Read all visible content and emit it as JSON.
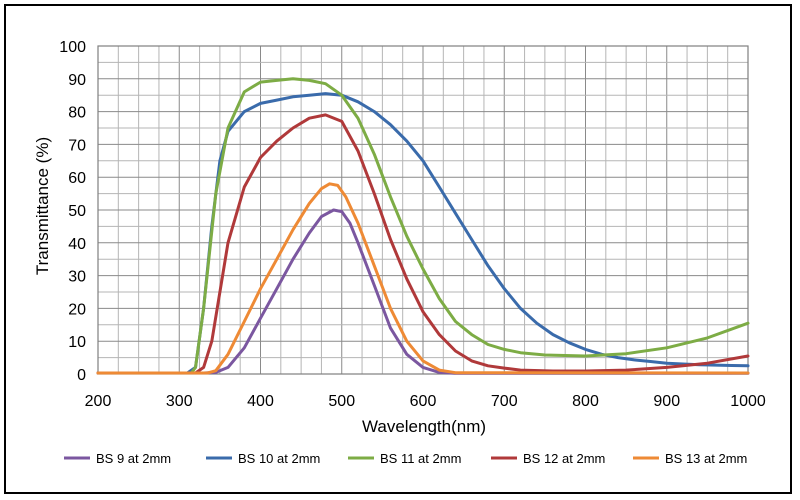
{
  "chart_data": {
    "type": "line",
    "title": "",
    "xlabel": "Wavelength(nm)",
    "ylabel": "Transmittance (%)",
    "xlim": [
      200,
      1000
    ],
    "ylim": [
      0,
      100
    ],
    "x_ticks": [
      200,
      300,
      400,
      500,
      600,
      700,
      800,
      900,
      1000
    ],
    "y_ticks": [
      0,
      10,
      20,
      30,
      40,
      50,
      60,
      70,
      80,
      90,
      100
    ],
    "x_minor_step": 25,
    "y_minor_step": 5,
    "grid": true,
    "legend_position": "bottom",
    "series": [
      {
        "name": "BS 9 at 2mm",
        "color": "#7b57a0",
        "points": [
          [
            200,
            0.3
          ],
          [
            330,
            0.3
          ],
          [
            345,
            0.5
          ],
          [
            360,
            2
          ],
          [
            380,
            8
          ],
          [
            400,
            17
          ],
          [
            420,
            26
          ],
          [
            440,
            35
          ],
          [
            460,
            43
          ],
          [
            475,
            48
          ],
          [
            490,
            50
          ],
          [
            500,
            49.5
          ],
          [
            510,
            46
          ],
          [
            520,
            40
          ],
          [
            540,
            27
          ],
          [
            560,
            14
          ],
          [
            580,
            6
          ],
          [
            600,
            2
          ],
          [
            620,
            0.5
          ],
          [
            640,
            0.2
          ],
          [
            1000,
            0.2
          ]
        ]
      },
      {
        "name": "BS 10 at 2mm",
        "color": "#3a6bab",
        "points": [
          [
            200,
            0.3
          ],
          [
            310,
            0.3
          ],
          [
            320,
            2
          ],
          [
            330,
            20
          ],
          [
            340,
            45
          ],
          [
            350,
            65
          ],
          [
            360,
            74
          ],
          [
            380,
            80
          ],
          [
            400,
            82.5
          ],
          [
            420,
            83.5
          ],
          [
            440,
            84.5
          ],
          [
            460,
            85
          ],
          [
            480,
            85.5
          ],
          [
            500,
            85
          ],
          [
            520,
            83
          ],
          [
            540,
            80
          ],
          [
            560,
            76
          ],
          [
            580,
            71
          ],
          [
            600,
            65
          ],
          [
            620,
            57
          ],
          [
            640,
            49
          ],
          [
            660,
            41
          ],
          [
            680,
            33
          ],
          [
            700,
            26
          ],
          [
            720,
            20
          ],
          [
            740,
            15.5
          ],
          [
            760,
            12
          ],
          [
            780,
            9.5
          ],
          [
            800,
            7.5
          ],
          [
            820,
            6
          ],
          [
            840,
            5
          ],
          [
            860,
            4.3
          ],
          [
            880,
            3.8
          ],
          [
            900,
            3.3
          ],
          [
            940,
            2.8
          ],
          [
            980,
            2.6
          ],
          [
            1000,
            2.5
          ]
        ]
      },
      {
        "name": "BS 11 at 2mm",
        "color": "#7dac45",
        "points": [
          [
            200,
            0.3
          ],
          [
            315,
            0.3
          ],
          [
            320,
            2
          ],
          [
            330,
            20
          ],
          [
            345,
            55
          ],
          [
            360,
            75
          ],
          [
            380,
            86
          ],
          [
            400,
            89
          ],
          [
            420,
            89.5
          ],
          [
            440,
            90
          ],
          [
            460,
            89.5
          ],
          [
            480,
            88.5
          ],
          [
            500,
            85
          ],
          [
            520,
            78
          ],
          [
            540,
            67
          ],
          [
            560,
            54
          ],
          [
            580,
            42
          ],
          [
            600,
            32
          ],
          [
            620,
            23
          ],
          [
            640,
            16
          ],
          [
            660,
            12
          ],
          [
            680,
            9
          ],
          [
            700,
            7.5
          ],
          [
            720,
            6.5
          ],
          [
            750,
            5.8
          ],
          [
            800,
            5.5
          ],
          [
            850,
            6.2
          ],
          [
            900,
            8
          ],
          [
            950,
            11
          ],
          [
            1000,
            15.5
          ]
        ]
      },
      {
        "name": "BS 12 at 2mm",
        "color": "#b0393a",
        "points": [
          [
            200,
            0.3
          ],
          [
            320,
            0.3
          ],
          [
            330,
            2
          ],
          [
            340,
            10
          ],
          [
            350,
            25
          ],
          [
            360,
            40
          ],
          [
            380,
            57
          ],
          [
            400,
            66
          ],
          [
            420,
            71
          ],
          [
            440,
            75
          ],
          [
            460,
            78
          ],
          [
            480,
            79
          ],
          [
            500,
            77
          ],
          [
            520,
            68
          ],
          [
            540,
            55
          ],
          [
            560,
            41
          ],
          [
            580,
            29
          ],
          [
            600,
            19
          ],
          [
            620,
            12
          ],
          [
            640,
            7
          ],
          [
            660,
            4
          ],
          [
            680,
            2.5
          ],
          [
            700,
            1.8
          ],
          [
            720,
            1.2
          ],
          [
            760,
            0.9
          ],
          [
            800,
            0.9
          ],
          [
            850,
            1.2
          ],
          [
            900,
            2
          ],
          [
            950,
            3.3
          ],
          [
            1000,
            5.5
          ]
        ]
      },
      {
        "name": "BS 13 at 2mm",
        "color": "#ee8a35",
        "points": [
          [
            200,
            0.3
          ],
          [
            335,
            0.3
          ],
          [
            345,
            1
          ],
          [
            360,
            6
          ],
          [
            380,
            16
          ],
          [
            400,
            26
          ],
          [
            420,
            35
          ],
          [
            440,
            44
          ],
          [
            460,
            52
          ],
          [
            475,
            56.5
          ],
          [
            485,
            58
          ],
          [
            495,
            57.5
          ],
          [
            505,
            54
          ],
          [
            520,
            46
          ],
          [
            540,
            33
          ],
          [
            560,
            20
          ],
          [
            580,
            10
          ],
          [
            600,
            4
          ],
          [
            620,
            1.2
          ],
          [
            640,
            0.4
          ],
          [
            1000,
            0.3
          ]
        ]
      }
    ]
  }
}
